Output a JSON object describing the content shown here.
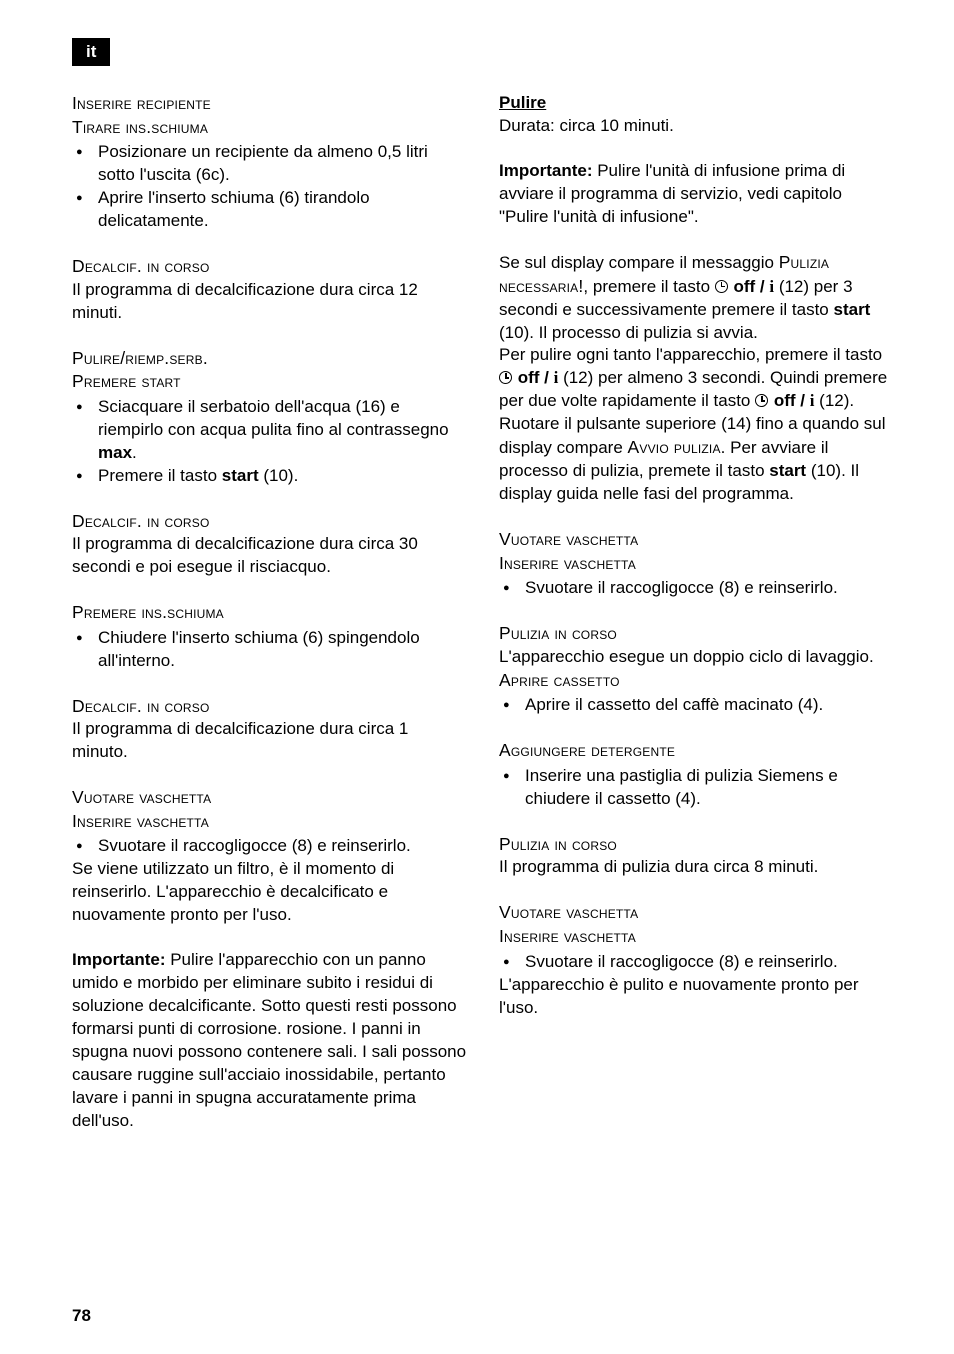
{
  "lang_tab": "it",
  "page_number": "78",
  "left": {
    "p1_l1": "Inserire recipiente",
    "p1_l2": "Tirare ins.schiuma",
    "li1": "Posizionare un recipiente da almeno 0,5 litri sotto l'uscita (6c).",
    "li2": "Aprire l'inserto schiuma (6) tirandolo delicatamente.",
    "p2_h": "Decalcif. in corso",
    "p2_b": "Il programma di decalcificazione dura circa 12 minuti.",
    "p3_l1": "Pulire/riemp.serb.",
    "p3_l2": "Premere start",
    "li3a": "Sciacquare il serbatoio dell'acqua (16) e riempirlo con acqua pulita fino al contrassegno ",
    "li3b": "max",
    "li3c": ".",
    "li4a": "Premere il tasto ",
    "li4b": "start",
    "li4c": " (10).",
    "p4_h": "Decalcif. in corso",
    "p4_b": "Il programma di decalcificazione dura circa 30 secondi e poi esegue il risciacquo.",
    "p5_h": "Premere ins.schiuma",
    "li5": "Chiudere l'inserto schiuma (6) spingendolo all'interno.",
    "p6_h": "Decalcif. in corso",
    "p6_b": "Il programma di decalcificazione dura circa 1 minuto.",
    "p7_l1": "Vuotare vaschetta",
    "p7_l2": "Inserire vaschetta",
    "li6": "Svuotare il raccogligocce (8) e reinserirlo.",
    "p8": "Se viene utilizzato un filtro, è il momento di reinserirlo. L'apparecchio è decalcificato e nuovamente pronto per l'uso.",
    "p9a": "Importante:",
    "p9b": " Pulire l'apparecchio con un panno umido e morbido per eliminare subito i residui di soluzione decalcificante. Sotto questi resti possono formarsi punti di corrosione. rosione. I panni in spugna nuovi possono contenere sali. I sali possono causare ruggine sull'acciaio inossidabile, pertanto lavare i panni in spugna accuratamente prima dell'uso."
  },
  "right": {
    "h1": "Pulire",
    "p1": "Durata: circa 10 minuti.",
    "p2a": "Importante:",
    "p2b": " Pulire l'unità di infusione prima di avviare il programma di servizio, vedi capitolo \"Pulire l'unità di infusione\".",
    "p3_a": "Se sul display compare il messaggio ",
    "p3_sc1": "Pulizia necessaria!",
    "p3_b": ", premere il tasto ",
    "offj": " off / ",
    "p3_c": " (12) per 3 secondi e successivamente premere il tasto ",
    "start": "start",
    "p3_d": " (10). Il processo di pulizia si avvia.",
    "p3_e": "Per pulire ogni tanto l'apparecchio, premere il tasto ",
    "p3_f": " (12) per almeno 3 secondi. Quindi premere per due volte rapidamente il tasto ",
    "p3_g": " (12). Ruotare il pulsante superiore (14) fino a quando sul display compare ",
    "p3_sc2": "Avvio pulizia",
    "p3_h": ". Per avviare il processo di pulizia, premete il tasto ",
    "p3_i": " (10). Il display guida nelle fasi del programma.",
    "p4_l1": "Vuotare vaschetta",
    "p4_l2": "Inserire vaschetta",
    "li1": "Svuotare il raccogligocce (8) e reinserirlo.",
    "p5_h": "Pulizia in corso",
    "p5_b": "L'apparecchio esegue un doppio ciclo di lavaggio.",
    "p5_sc": "Aprire cassetto",
    "li2": "Aprire il cassetto del caffè macinato (4).",
    "p6_h": "Aggiungere detergente",
    "li3": "Inserire una pastiglia di pulizia Siemens e chiudere il cassetto (4).",
    "p7_h": "Pulizia in corso",
    "p7_b": "Il programma di pulizia dura circa 8 minuti.",
    "p8_l1": "Vuotare vaschetta",
    "p8_l2": "Inserire vaschetta",
    "li4": "Svuotare il raccogligocce (8) e reinserirlo.",
    "p9": "L'apparecchio è pulito e nuovamente pronto per l'uso."
  }
}
